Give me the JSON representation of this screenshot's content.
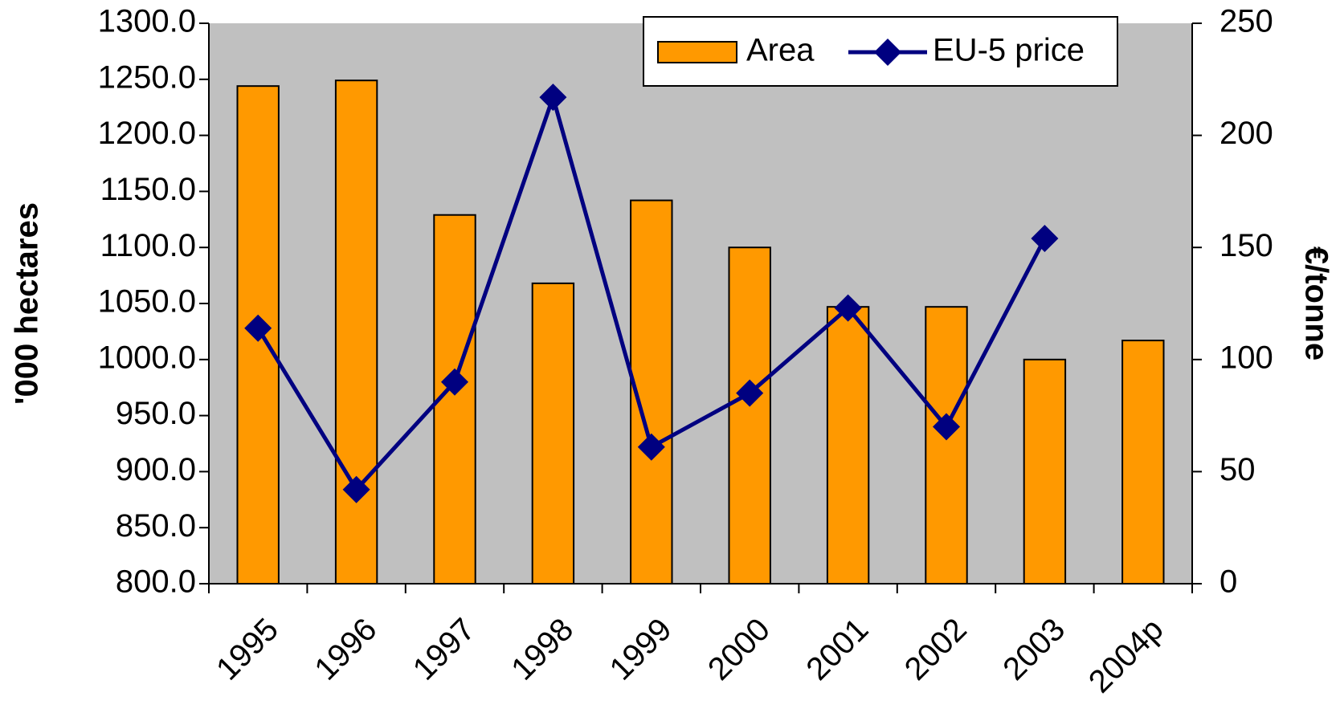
{
  "chart_data": {
    "type": "bar_line",
    "categories": [
      "1995",
      "1996",
      "1997",
      "1998",
      "1999",
      "2000",
      "2001",
      "2002",
      "2003",
      "2004p"
    ],
    "series": [
      {
        "name": "Area",
        "color": "#ff9900",
        "type": "bar",
        "values": [
          1244,
          1249,
          1129,
          1068,
          1142,
          1100,
          1047,
          1047,
          1000,
          1017
        ]
      },
      {
        "name": "EU-5 price",
        "color": "#000080",
        "type": "line",
        "axis": "y2",
        "values": [
          114,
          42,
          90,
          217,
          61,
          85,
          123,
          70,
          154,
          null
        ]
      }
    ],
    "y_label": "'000 hectares",
    "y2_label": "€/tonne",
    "ylim": [
      800,
      1300
    ],
    "yticks": [
      {
        "value": 800,
        "label": "800.0"
      },
      {
        "value": 850,
        "label": "850.0"
      },
      {
        "value": 900,
        "label": "900.0"
      },
      {
        "value": 950,
        "label": "950.0"
      },
      {
        "value": 1000,
        "label": "1000.0"
      },
      {
        "value": 1050,
        "label": "1050.0"
      },
      {
        "value": 1100,
        "label": "1100.0"
      },
      {
        "value": 1150,
        "label": "1150.0"
      },
      {
        "value": 1200,
        "label": "1200.0"
      },
      {
        "value": 1250,
        "label": "1250.0"
      },
      {
        "value": 1300,
        "label": "1300.0"
      }
    ],
    "y2lim": [
      0,
      250
    ],
    "y2ticks": [
      0,
      50,
      100,
      150,
      200,
      250
    ],
    "legend": "top-right",
    "background": "#c0c0c0"
  }
}
